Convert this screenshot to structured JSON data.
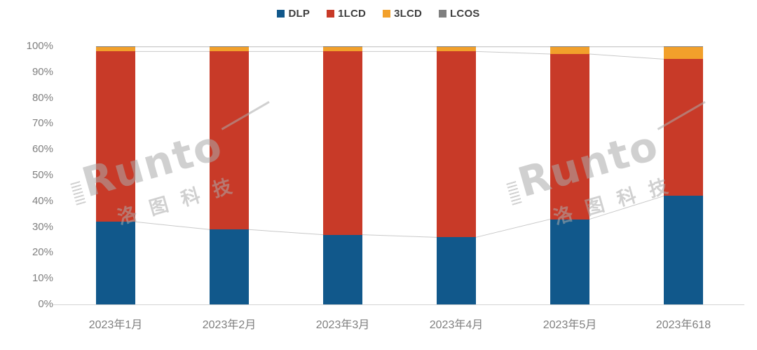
{
  "legend": {
    "items": [
      {
        "label": "DLP",
        "color": "#11588b"
      },
      {
        "label": "1LCD",
        "color": "#c83a28"
      },
      {
        "label": "3LCD",
        "color": "#f2a02b"
      },
      {
        "label": "LCOS",
        "color": "#7f7f7f"
      }
    ]
  },
  "y_axis": {
    "tick_labels": [
      "100%",
      "90%",
      "80%",
      "70%",
      "60%",
      "50%",
      "40%",
      "30%",
      "20%",
      "10%",
      "0%"
    ]
  },
  "chart_data": {
    "type": "bar",
    "stacked": true,
    "percent_stacked": true,
    "title": "",
    "xlabel": "",
    "ylabel": "",
    "ylim": [
      0,
      100
    ],
    "grid": false,
    "legend_position": "top-center",
    "series_connector_lines": true,
    "categories": [
      "2023年1月",
      "2023年2月",
      "2023年3月",
      "2023年4月",
      "2023年5月",
      "2023年618"
    ],
    "series": [
      {
        "name": "DLP",
        "color": "#11588b",
        "values": [
          32,
          29,
          27,
          26,
          33,
          42
        ]
      },
      {
        "name": "1LCD",
        "color": "#c83a28",
        "values": [
          66,
          69,
          71,
          72,
          64,
          53
        ]
      },
      {
        "name": "3LCD",
        "color": "#f2a02b",
        "values": [
          1.8,
          1.8,
          1.8,
          1.8,
          2.8,
          4.8
        ]
      },
      {
        "name": "LCOS",
        "color": "#7f7f7f",
        "values": [
          0.2,
          0.2,
          0.2,
          0.2,
          0.2,
          0.2
        ]
      }
    ]
  },
  "watermark": {
    "brand": "Runto",
    "chinese": "洛图科技"
  },
  "colors": {
    "axis_line": "#d3d3d3",
    "connector_line": "#c9c9c9",
    "tick_text": "#7f7f7f",
    "legend_text": "#3f3f3f",
    "watermark": "#ababab"
  }
}
